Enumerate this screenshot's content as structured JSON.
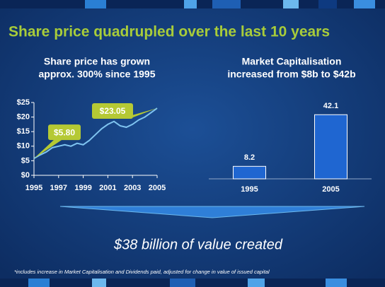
{
  "title": "Share price quadrupled over the last 10 years",
  "banner": "$38 billion of value created",
  "footnote": "*includes increase in Market Capitalisation and Dividends paid, adjusted for change in value of  issued capital",
  "chart_data": [
    {
      "type": "line",
      "title": "Share price has grown",
      "subtitle": "approx. 300% since 1995",
      "x": [
        1995,
        1995.5,
        1996,
        1996.5,
        1997,
        1997.5,
        1998,
        1998.5,
        1999,
        1999.5,
        2000,
        2000.5,
        2001,
        2001.5,
        2002,
        2002.5,
        2003,
        2003.5,
        2004,
        2004.5,
        2005
      ],
      "series": [
        {
          "name": "Share price",
          "color": "#7fc4f0",
          "values": [
            5.8,
            7,
            8,
            9.5,
            10,
            10.5,
            10,
            11,
            10.5,
            12,
            14,
            16,
            17.5,
            18.5,
            17,
            16.5,
            17.5,
            19,
            20,
            21.5,
            23.05
          ]
        }
      ],
      "xlim": [
        1995,
        2005
      ],
      "xticks": [
        1995,
        1997,
        1999,
        2001,
        2003,
        2005
      ],
      "ylim": [
        0,
        25
      ],
      "yticks": [
        {
          "value": 0,
          "label": "$0"
        },
        {
          "value": 5,
          "label": "$5"
        },
        {
          "value": 10,
          "label": "$10"
        },
        {
          "value": 15,
          "label": "$15"
        },
        {
          "value": 20,
          "label": "$20"
        },
        {
          "value": 25,
          "label": "$25"
        }
      ],
      "annotations": [
        {
          "text": "$5.80",
          "x": 1995,
          "y": 5.8
        },
        {
          "text": "$23.05",
          "x": 2005,
          "y": 23.05
        }
      ]
    },
    {
      "type": "bar",
      "title": "Market Capitalisation",
      "subtitle": "increased from $8b to $42b",
      "categories": [
        "1995",
        "2005"
      ],
      "values": [
        8.2,
        42.1
      ],
      "color": "#1f66d1",
      "ylim": [
        0,
        45
      ]
    }
  ]
}
